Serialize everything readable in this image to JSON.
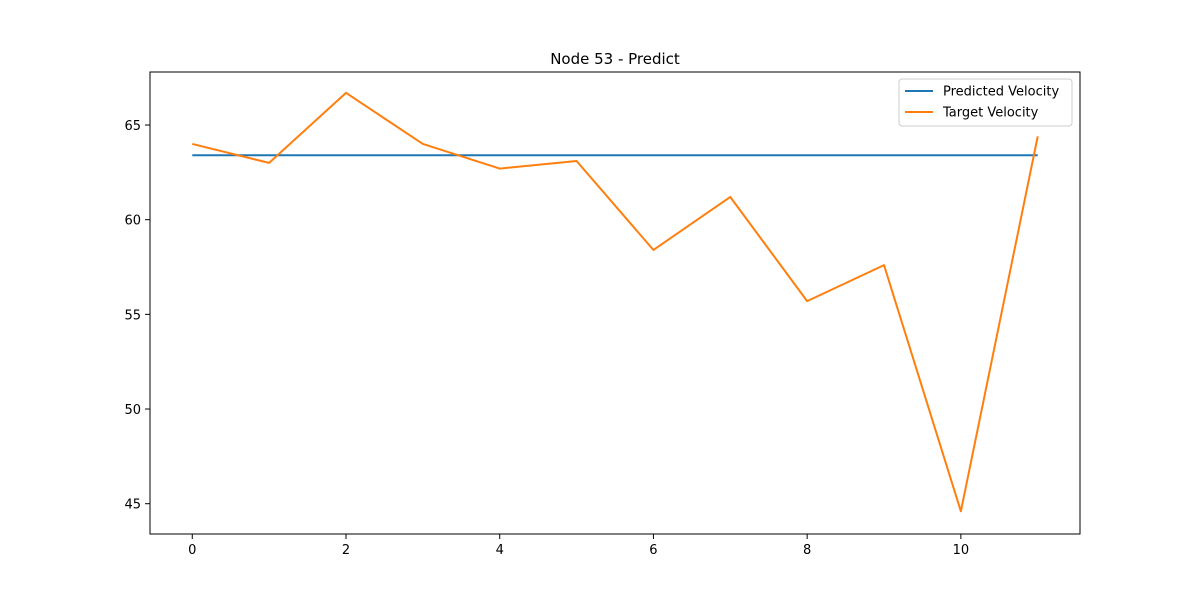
{
  "chart_data": {
    "type": "line",
    "title": "Node 53 - Predict",
    "xlabel": "",
    "ylabel": "",
    "x": [
      0,
      1,
      2,
      3,
      4,
      5,
      6,
      7,
      8,
      9,
      10,
      11
    ],
    "xlim": [
      -0.55,
      11.55
    ],
    "ylim": [
      43.4,
      67.8
    ],
    "xticks": [
      0,
      2,
      4,
      6,
      8,
      10
    ],
    "yticks": [
      45,
      50,
      55,
      60,
      65
    ],
    "grid": false,
    "legend_position": "top-right",
    "series": [
      {
        "name": "Predicted Velocity",
        "color": "#1f77b4",
        "values": [
          63.4,
          63.4,
          63.4,
          63.4,
          63.4,
          63.4,
          63.4,
          63.4,
          63.4,
          63.4,
          63.4,
          63.4
        ]
      },
      {
        "name": "Target Velocity",
        "color": "#ff7f0e",
        "values": [
          64.0,
          63.0,
          66.7,
          64.0,
          62.7,
          63.1,
          58.4,
          61.2,
          55.7,
          57.6,
          44.6,
          64.4
        ]
      }
    ]
  }
}
